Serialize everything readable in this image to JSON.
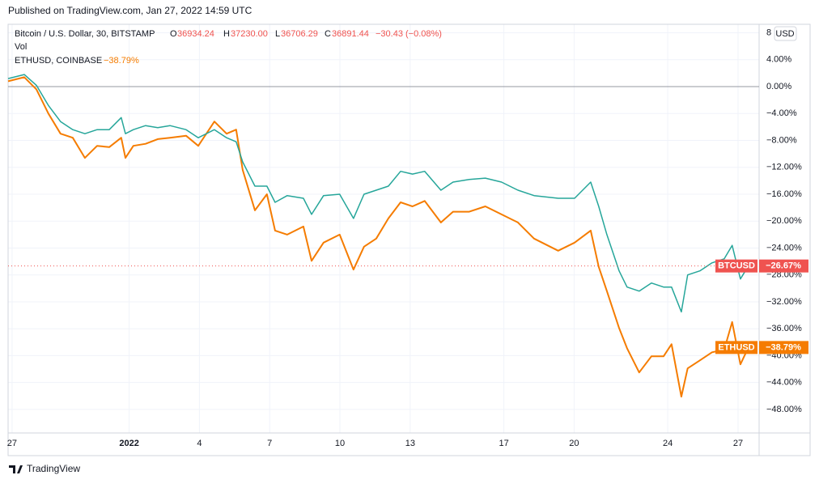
{
  "header": {
    "published": "Published on TradingView.com, Jan 27, 2022 14:59 UTC"
  },
  "legend": {
    "main": "Bitcoin / U.S. Dollar, 30, BITSTAMP",
    "o_key": "O",
    "o": "36934.24",
    "h_key": "H",
    "h": "37230.00",
    "l_key": "L",
    "l": "36706.29",
    "c_key": "C",
    "c": "36891.44",
    "change": "−30.43 (−0.08%)",
    "vol": "Vol",
    "compare": "ETHUSD, COINBASE",
    "compare_change": "−38.79%"
  },
  "currency_button": "USD",
  "footer": {
    "brand": "TradingView"
  },
  "chart_data": {
    "type": "line",
    "x": [
      -0.17,
      0.52,
      1.04,
      1.55,
      2.07,
      2.59,
      3.11,
      3.63,
      4.15,
      4.66,
      4.84,
      5.18,
      5.7,
      6.22,
      6.74,
      7.43,
      7.95,
      8.64,
      9.16,
      9.57,
      9.85,
      10.37,
      10.88,
      11.23,
      11.75,
      12.44,
      12.79,
      13.3,
      13.99,
      14.58,
      15.03,
      15.55,
      16.07,
      16.59,
      17.1,
      17.62,
      18.31,
      18.83,
      19.52,
      20.21,
      20.9,
      21.6,
      22.29,
      23.32,
      24.02,
      24.71,
      25.05,
      25.4,
      25.92,
      26.26,
      26.78,
      27.3,
      27.82,
      28.16,
      28.58,
      28.85,
      29.37,
      29.89,
      30.41,
      30.75,
      31.1,
      31.44
    ],
    "series": [
      {
        "name": "BTCUSD",
        "color": "#26a69a",
        "label_color": "#ef5350",
        "values": [
          1.2,
          1.8,
          0.2,
          -2.8,
          -5.2,
          -6.4,
          -7,
          -6.4,
          -6.4,
          -4.6,
          -7,
          -6.4,
          -5.8,
          -6.1,
          -5.8,
          -6.4,
          -7.6,
          -6.4,
          -7.6,
          -8.2,
          -11.2,
          -14.8,
          -14.8,
          -17.2,
          -16.2,
          -16.6,
          -19,
          -16.2,
          -16,
          -19.6,
          -16,
          -15.4,
          -14.8,
          -12.6,
          -13,
          -12.6,
          -15.4,
          -14.2,
          -13.8,
          -13.6,
          -14.2,
          -15.4,
          -16.2,
          -16.6,
          -16.6,
          -14.2,
          -17.8,
          -22,
          -27.4,
          -29.8,
          -30.4,
          -29.2,
          -29.8,
          -29.8,
          -33.5,
          -28,
          -27.4,
          -26.2,
          -25.6,
          -23.6,
          -28.6,
          -26.67
        ],
        "value_labels": [
          null,
          null,
          null,
          null,
          null,
          null,
          null,
          null,
          null,
          null,
          null,
          null,
          null,
          null,
          null,
          null,
          null,
          null,
          null,
          null,
          null,
          null,
          null,
          null,
          null,
          null,
          null,
          null,
          null,
          null,
          null,
          null,
          null,
          null,
          null,
          null,
          null,
          null,
          null,
          null,
          null,
          null,
          null,
          null,
          null,
          null,
          null,
          null,
          null,
          null,
          null,
          null,
          null,
          null,
          null,
          null,
          null,
          null,
          null,
          null,
          null,
          "−26.67%"
        ]
      },
      {
        "name": "ETHUSD",
        "color": "#f57c00",
        "label_color": "#f57c00",
        "values": [
          0.8,
          1.4,
          -0.4,
          -4,
          -7,
          -7.6,
          -10.6,
          -8.8,
          -9,
          -7.6,
          -10.6,
          -8.8,
          -8.5,
          -7.8,
          -7.6,
          -7.3,
          -8.8,
          -5.2,
          -7,
          -6.4,
          -12.4,
          -18.4,
          -16,
          -21.4,
          -22,
          -20.8,
          -25.9,
          -23.2,
          -22,
          -27.2,
          -23.8,
          -22.6,
          -19.6,
          -17.2,
          -17.8,
          -17,
          -20.2,
          -18.6,
          -18.6,
          -17.8,
          -19,
          -20.2,
          -22.6,
          -24.4,
          -23.2,
          -21.4,
          -26.8,
          -30.4,
          -35.9,
          -38.9,
          -42.5,
          -40.1,
          -40.1,
          -38.3,
          -46.1,
          -41.9,
          -40.7,
          -39.5,
          -39.1,
          -35,
          -41.3,
          -38.79
        ],
        "value_labels": [
          null,
          null,
          null,
          null,
          null,
          null,
          null,
          null,
          null,
          null,
          null,
          null,
          null,
          null,
          null,
          null,
          null,
          null,
          null,
          null,
          null,
          null,
          null,
          null,
          null,
          null,
          null,
          null,
          null,
          null,
          null,
          null,
          null,
          null,
          null,
          null,
          null,
          null,
          null,
          null,
          null,
          null,
          null,
          null,
          null,
          null,
          null,
          null,
          null,
          null,
          null,
          null,
          null,
          null,
          null,
          null,
          null,
          null,
          null,
          null,
          null,
          "−38.79%"
        ]
      }
    ],
    "xlim": [
      -0.17,
      31.9
    ],
    "xticks": [
      {
        "value": 0,
        "label": "27"
      },
      {
        "value": 5,
        "label": "2022"
      },
      {
        "value": 8,
        "label": "4"
      },
      {
        "value": 11,
        "label": "7"
      },
      {
        "value": 14,
        "label": "10"
      },
      {
        "value": 17,
        "label": "13"
      },
      {
        "value": 21,
        "label": "17"
      },
      {
        "value": 24,
        "label": "20"
      },
      {
        "value": 28,
        "label": "24"
      },
      {
        "value": 31,
        "label": "27"
      }
    ],
    "ylim": [
      -51.5,
      9.27
    ],
    "yticks": [
      {
        "value": 8,
        "label": "8"
      },
      {
        "value": 4,
        "label": "4.00%"
      },
      {
        "value": 0,
        "label": "0.00%"
      },
      {
        "value": -4,
        "label": "−4.00%"
      },
      {
        "value": -8,
        "label": "−8.00%"
      },
      {
        "value": -12,
        "label": "−12.00%"
      },
      {
        "value": -16,
        "label": "−16.00%"
      },
      {
        "value": -20,
        "label": "−20.00%"
      },
      {
        "value": -24,
        "label": "−24.00%"
      },
      {
        "value": -28,
        "label": "−28.00%"
      },
      {
        "value": -32,
        "label": "−32.00%"
      },
      {
        "value": -36,
        "label": "−36.00%"
      },
      {
        "value": -40,
        "label": "−40.00%"
      },
      {
        "value": -44,
        "label": "−44.00%"
      },
      {
        "value": -48,
        "label": "−48.00%"
      }
    ],
    "grid": true,
    "baseline": 0,
    "price_line_series": 0
  }
}
